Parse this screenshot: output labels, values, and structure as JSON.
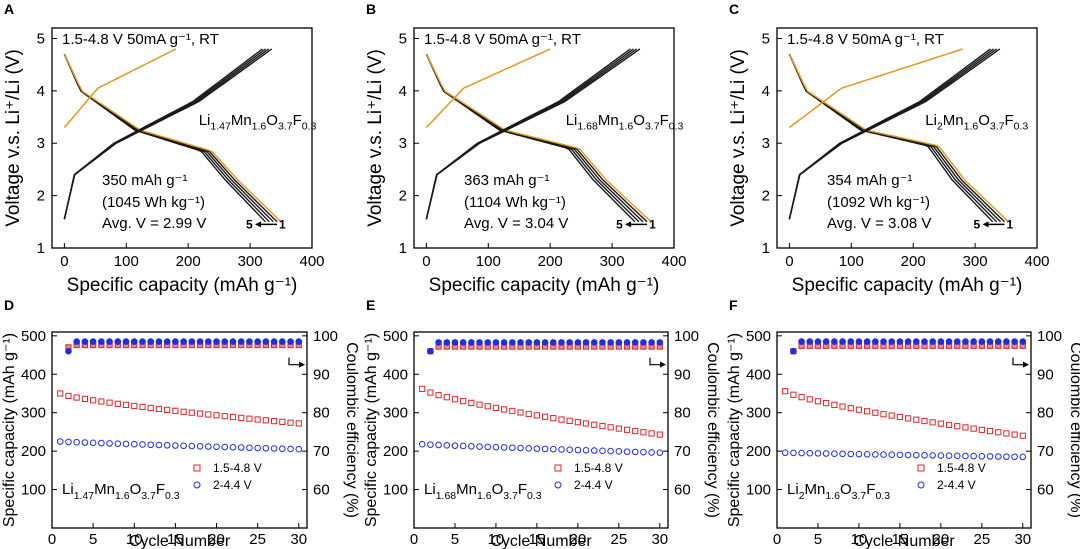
{
  "chart_data": [
    {
      "panel": "A",
      "type": "line",
      "xlabel": "Specific capacity (mAh g⁻¹)",
      "ylabel": "Voltage v.s. Li⁺/Li (V)",
      "xlim": [
        -20,
        400
      ],
      "ylim": [
        1,
        5.2
      ],
      "xticks": [
        "0",
        "100",
        "200",
        "300",
        "400"
      ],
      "yticks": [
        "1",
        "2",
        "3",
        "4",
        "5"
      ],
      "condition": "1.5-4.8 V 50mA g⁻¹, RT",
      "material": {
        "base": "Li",
        "sub1": "1.47",
        "mid": "Mn",
        "sub2": "1.6",
        "mid2": "O",
        "sub3": "3.7",
        "end": "F",
        "sub4": "0.3"
      },
      "capacity_text": "350 mAh g⁻¹",
      "energy_text": "(1045 Wh kg⁻¹)",
      "avg_text": "Avg. V = 2.99 V",
      "cycle_from": "5",
      "cycle_to": "1",
      "dis_end": 350,
      "charge_end": 335,
      "first_charge_end": 180,
      "plateau": 2.85
    },
    {
      "panel": "B",
      "type": "line",
      "xlabel": "Specific capacity (mAh g⁻¹)",
      "ylabel": "Voltage v.s. Li⁺/Li (V)",
      "xlim": [
        -20,
        400
      ],
      "ylim": [
        1,
        5.2
      ],
      "xticks": [
        "0",
        "100",
        "200",
        "300",
        "400"
      ],
      "yticks": [
        "1",
        "2",
        "3",
        "4",
        "5"
      ],
      "condition": "1.5-4.8 V 50mA g⁻¹, RT",
      "material": {
        "base": "Li",
        "sub1": "1.68",
        "mid": "Mn",
        "sub2": "1.6",
        "mid2": "O",
        "sub3": "3.7",
        "end": "F",
        "sub4": "0.3"
      },
      "capacity_text": "363 mAh g⁻¹",
      "energy_text": "(1104 Wh kg⁻¹)",
      "avg_text": "Avg. V = 3.04 V",
      "cycle_from": "5",
      "cycle_to": "1",
      "dis_end": 363,
      "charge_end": 345,
      "first_charge_end": 200,
      "plateau": 2.9
    },
    {
      "panel": "C",
      "type": "line",
      "xlabel": "Specific capacity (mAh g⁻¹)",
      "ylabel": "Voltage v.s. Li⁺/Li (V)",
      "xlim": [
        -20,
        400
      ],
      "ylim": [
        1,
        5.2
      ],
      "xticks": [
        "0",
        "100",
        "200",
        "300",
        "400"
      ],
      "yticks": [
        "1",
        "2",
        "3",
        "4",
        "5"
      ],
      "condition": "1.5-4.8 V 50mA g⁻¹, RT",
      "material": {
        "base": "Li",
        "sub1": "2",
        "mid": "Mn",
        "sub2": "1.6",
        "mid2": "O",
        "sub3": "3.7",
        "end": "F",
        "sub4": "0.3"
      },
      "capacity_text": "354 mAh g⁻¹",
      "energy_text": "(1092 Wh kg⁻¹)",
      "avg_text": "Avg. V = 3.08 V",
      "cycle_from": "5",
      "cycle_to": "1",
      "dis_end": 354,
      "charge_end": 340,
      "first_charge_end": 280,
      "plateau": 2.95
    },
    {
      "panel": "D",
      "type": "scatter",
      "xlabel": "Cycle Number",
      "ylabel": "Specific capacity (mAh g⁻¹)",
      "y2label": "Coulombic efficiency (%)",
      "xlim": [
        0,
        31
      ],
      "ylim": [
        0,
        510
      ],
      "y2lim": [
        50,
        101
      ],
      "xticks": [
        "0",
        "5",
        "10",
        "15",
        "20",
        "25",
        "30"
      ],
      "yticks": [
        "100",
        "200",
        "300",
        "400",
        "500"
      ],
      "y2ticks": [
        "60",
        "70",
        "80",
        "90",
        "100"
      ],
      "material": {
        "base": "Li",
        "sub1": "1.47",
        "mid": "Mn",
        "sub2": "1.6",
        "mid2": "O",
        "sub3": "3.7",
        "end": "F",
        "sub4": "0.3"
      },
      "legend": [
        "1.5-4.8 V",
        "2-4.4 V"
      ],
      "series": [
        {
          "name": "1.5-4.8 V capacity",
          "start": 350,
          "end": 272,
          "ce_start": 97,
          "ce": 97.6
        },
        {
          "name": "2-4.4 V capacity",
          "start": 225,
          "end": 205,
          "ce_start": 96,
          "ce": 98.5
        }
      ]
    },
    {
      "panel": "E",
      "type": "scatter",
      "xlabel": "Cycle Number",
      "ylabel": "Specific capacity (mAh g⁻¹)",
      "y2label": "Coulombic efficiency (%)",
      "xlim": [
        0,
        31
      ],
      "ylim": [
        0,
        510
      ],
      "y2lim": [
        50,
        101
      ],
      "xticks": [
        "0",
        "5",
        "10",
        "15",
        "20",
        "25",
        "30"
      ],
      "yticks": [
        "100",
        "200",
        "300",
        "400",
        "500"
      ],
      "y2ticks": [
        "60",
        "70",
        "80",
        "90",
        "100"
      ],
      "material": {
        "base": "Li",
        "sub1": "1.68",
        "mid": "Mn",
        "sub2": "1.6",
        "mid2": "O",
        "sub3": "3.7",
        "end": "F",
        "sub4": "0.3"
      },
      "legend": [
        "1.5-4.8 V",
        "2-4.4 V"
      ],
      "series": [
        {
          "name": "1.5-4.8 V capacity",
          "start": 362,
          "end": 243,
          "ce_start": 96,
          "ce": 97.2
        },
        {
          "name": "2-4.4 V capacity",
          "start": 218,
          "end": 196,
          "ce_start": 96,
          "ce": 98.3
        }
      ]
    },
    {
      "panel": "F",
      "type": "scatter",
      "xlabel": "Cycle Number",
      "ylabel": "Specific capacity (mAh g⁻¹)",
      "y2label": "Coulombic efficiency (%)",
      "xlim": [
        0,
        31
      ],
      "ylim": [
        0,
        510
      ],
      "y2lim": [
        50,
        101
      ],
      "xticks": [
        "0",
        "5",
        "10",
        "15",
        "20",
        "25",
        "30"
      ],
      "yticks": [
        "100",
        "200",
        "300",
        "400",
        "500"
      ],
      "y2ticks": [
        "60",
        "70",
        "80",
        "90",
        "100"
      ],
      "material": {
        "base": "Li",
        "sub1": "2",
        "mid": "Mn",
        "sub2": "1.6",
        "mid2": "O",
        "sub3": "3.7",
        "end": "F",
        "sub4": "0.3"
      },
      "legend": [
        "1.5-4.8 V",
        "2-4.4 V"
      ],
      "series": [
        {
          "name": "1.5-4.8 V capacity",
          "start": 356,
          "end": 240,
          "ce_start": 96,
          "ce": 97.4
        },
        {
          "name": "2-4.4 V capacity",
          "start": 196,
          "end": 185,
          "ce_start": 96,
          "ce": 98.5
        }
      ]
    }
  ],
  "colors": {
    "first_cycle": "#e8961e",
    "later_cycles": "#1a1a1a",
    "series_red": "#e0262b",
    "series_blue": "#1f2ee0"
  }
}
